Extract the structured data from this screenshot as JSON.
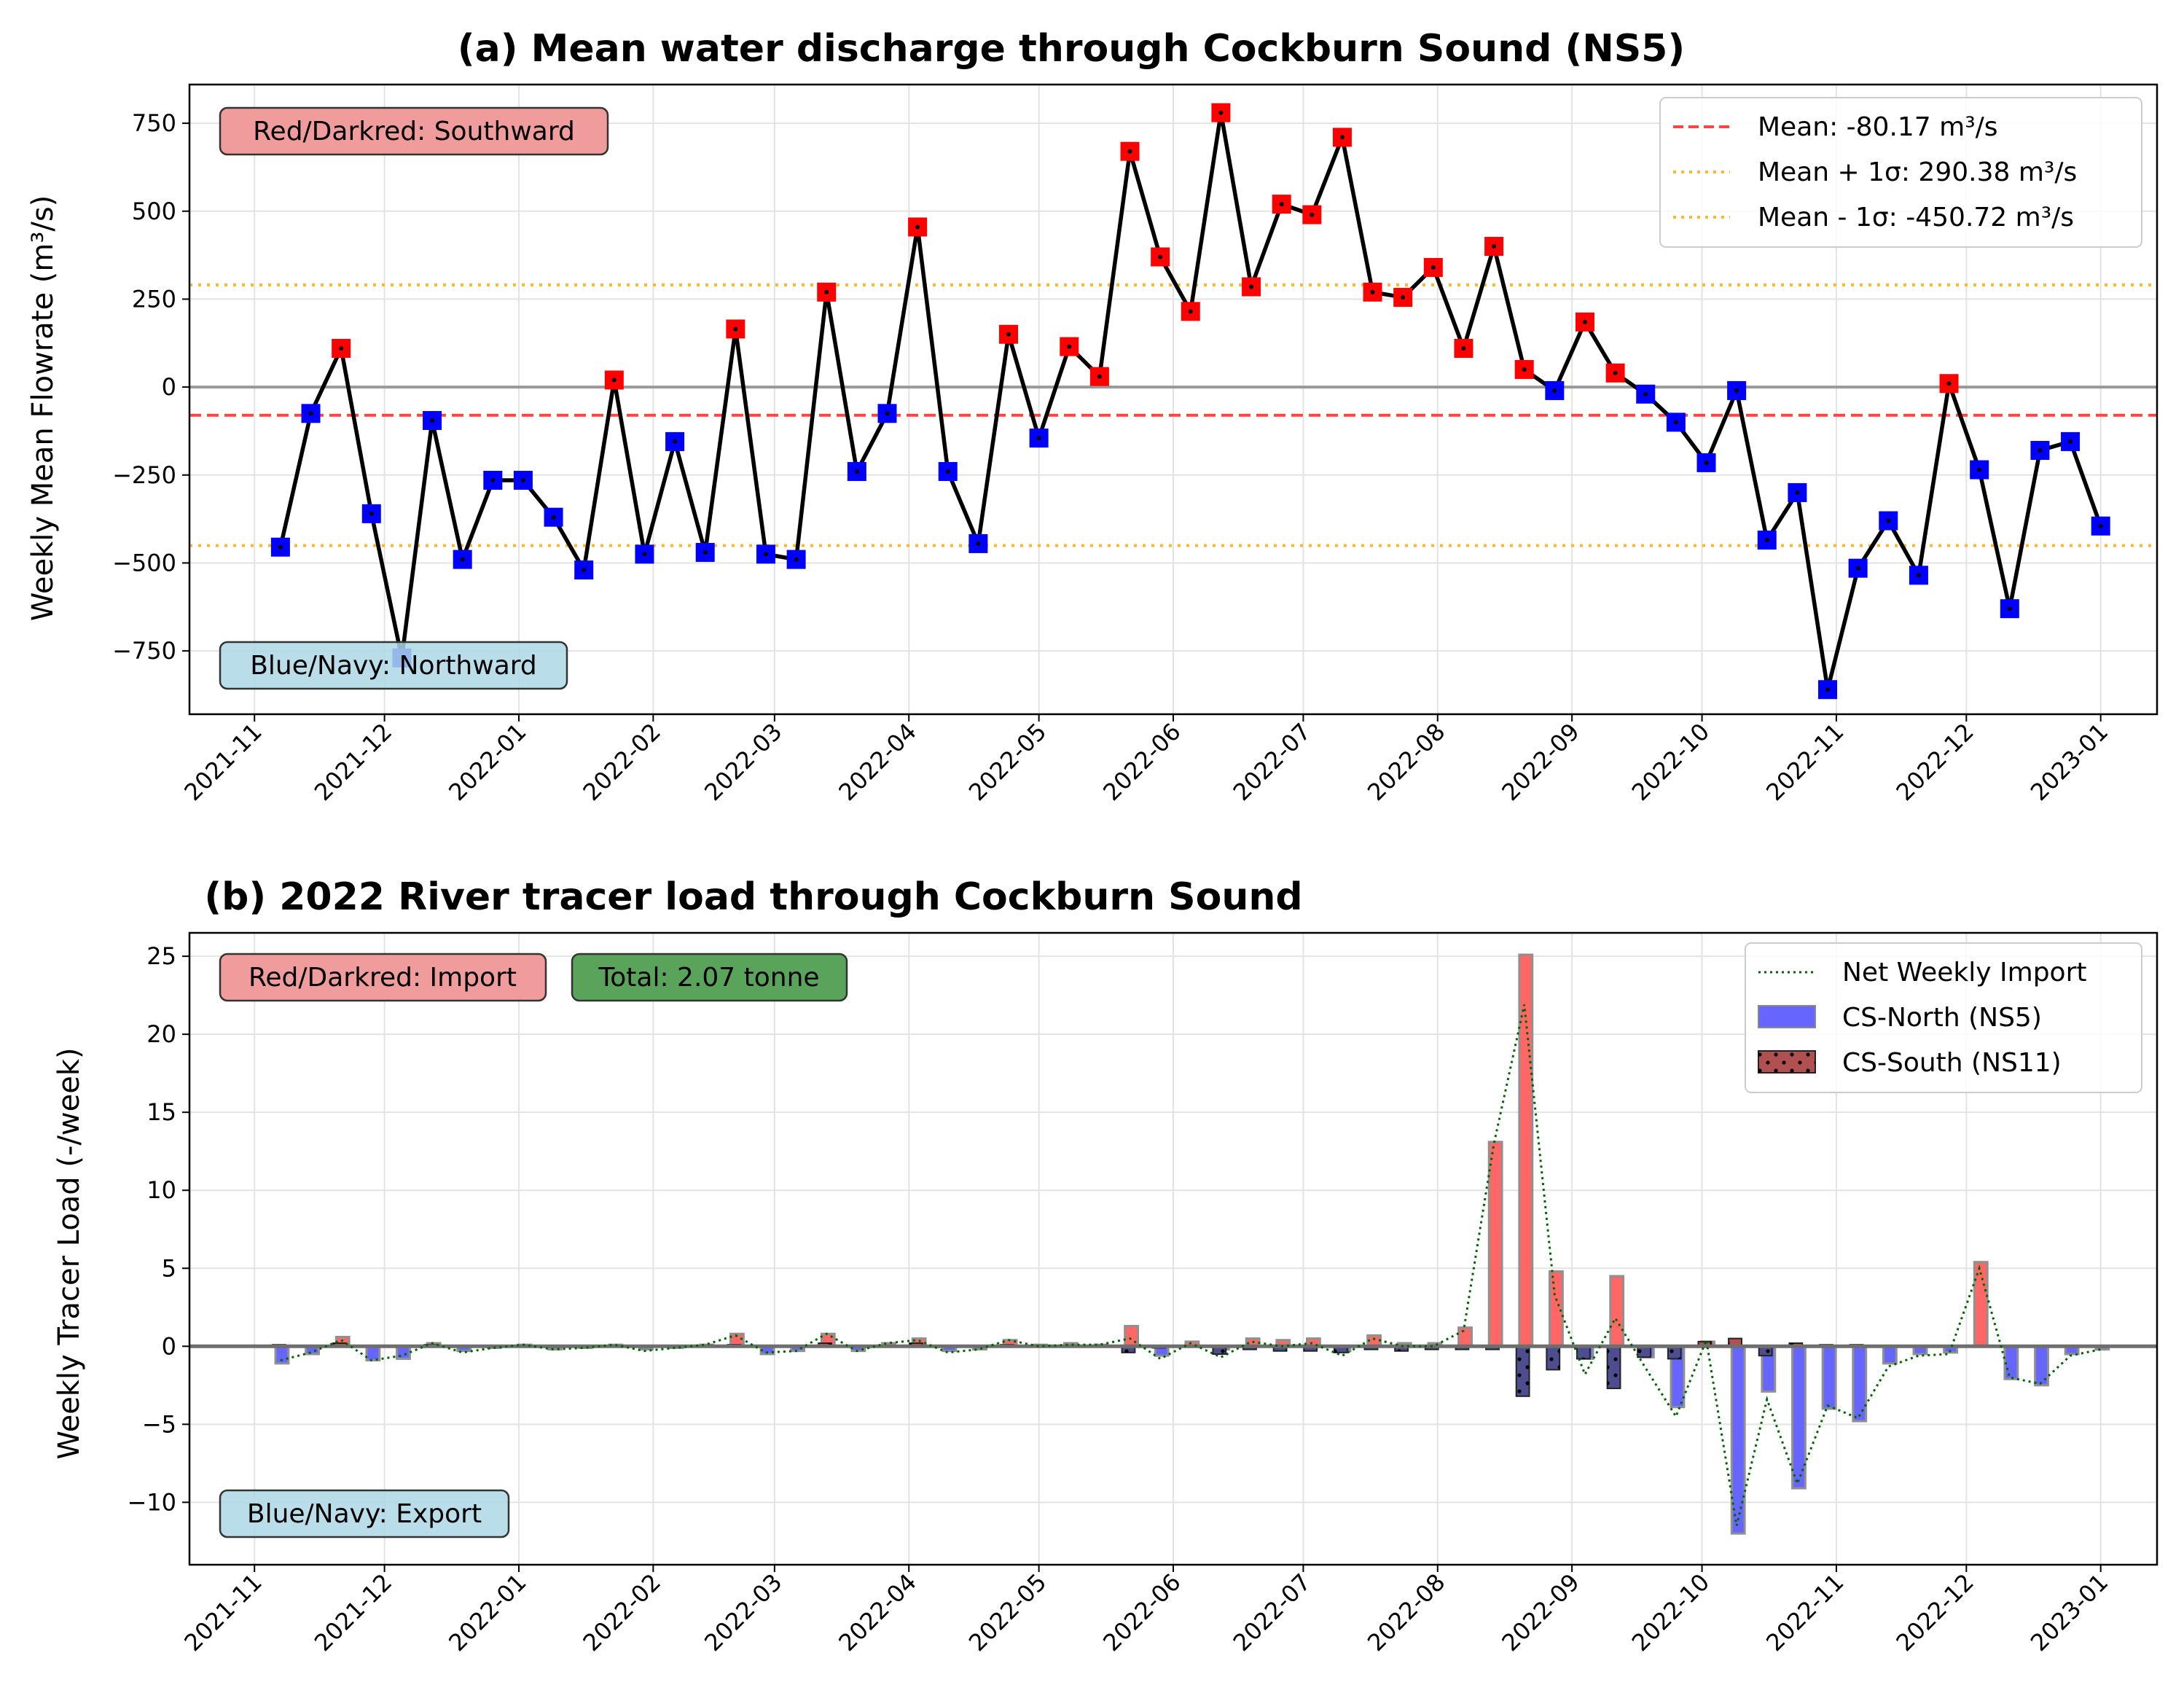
{
  "chart_data": [
    {
      "type": "line",
      "title": "(a) Mean water discharge through Cockburn Sound (NS5)",
      "ylabel": "Weekly Mean Flowrate (m³/s)",
      "xlabel": "",
      "xlim": [
        "2021-10-17",
        "2023-01-14"
      ],
      "ylim": [
        -930,
        860
      ],
      "yticks": [
        750,
        500,
        250,
        0,
        -250,
        -500,
        -750
      ],
      "xticks": [
        "2021-11",
        "2021-12",
        "2022-01",
        "2022-02",
        "2022-03",
        "2022-04",
        "2022-05",
        "2022-06",
        "2022-07",
        "2022-08",
        "2022-09",
        "2022-10",
        "2022-11",
        "2022-12",
        "2023-01"
      ],
      "grid": true,
      "legend_position": "upper right",
      "legend": [
        "Mean: -80.17 m³/s",
        "Mean + 1σ: 290.38 m³/s",
        "Mean - 1σ: -450.72 m³/s"
      ],
      "mean": -80.17,
      "upper": 290.38,
      "lower": -450.72,
      "annotations": [
        "Red/Darkred: Southward",
        "Blue/Navy: Northward"
      ],
      "colors": {
        "positive": "#ff0000",
        "negative": "#0000ff",
        "line": "#000000",
        "mean": "#ff4444",
        "sigma": "#ffb732"
      },
      "series": [
        {
          "x": [
            "2021-11-07",
            "2021-11-14",
            "2021-11-21",
            "2021-11-28",
            "2021-12-05",
            "2021-12-12",
            "2021-12-19",
            "2021-12-26",
            "2022-01-02",
            "2022-01-09",
            "2022-01-16",
            "2022-01-23",
            "2022-01-30",
            "2022-02-06",
            "2022-02-13",
            "2022-02-20",
            "2022-02-27",
            "2022-03-06",
            "2022-03-13",
            "2022-03-20",
            "2022-03-27",
            "2022-04-03",
            "2022-04-10",
            "2022-04-17",
            "2022-04-24",
            "2022-05-01",
            "2022-05-08",
            "2022-05-15",
            "2022-05-22",
            "2022-05-29",
            "2022-06-05",
            "2022-06-12",
            "2022-06-19",
            "2022-06-26",
            "2022-07-03",
            "2022-07-10",
            "2022-07-17",
            "2022-07-24",
            "2022-07-31",
            "2022-08-07",
            "2022-08-14",
            "2022-08-21",
            "2022-08-28",
            "2022-09-04",
            "2022-09-11",
            "2022-09-18",
            "2022-09-25",
            "2022-10-02",
            "2022-10-09",
            "2022-10-16",
            "2022-10-23",
            "2022-10-30",
            "2022-11-06",
            "2022-11-13",
            "2022-11-20",
            "2022-11-27",
            "2022-12-04",
            "2022-12-11",
            "2022-12-18",
            "2022-12-25",
            "2023-01-01"
          ],
          "y": [
            -455,
            -75,
            110,
            -360,
            -770,
            -95,
            -490,
            -265,
            -265,
            -370,
            -520,
            20,
            -475,
            -155,
            -470,
            165,
            -475,
            -490,
            270,
            -240,
            -75,
            455,
            -240,
            -445,
            150,
            -145,
            115,
            30,
            670,
            370,
            215,
            780,
            285,
            520,
            490,
            710,
            270,
            255,
            340,
            110,
            400,
            50,
            -10,
            185,
            40,
            -20,
            -100,
            -215,
            -10,
            -435,
            -300,
            -860,
            -515,
            -380,
            -535,
            10,
            -235,
            -630,
            -180,
            -155,
            -395
          ]
        }
      ]
    },
    {
      "type": "bar",
      "title": "(b) 2022 River tracer load through Cockburn Sound",
      "ylabel": "Weekly Tracer Load (-/week)",
      "xlabel": "",
      "xlim": [
        "2021-10-17",
        "2023-01-14"
      ],
      "ylim": [
        -14,
        26.5
      ],
      "yticks": [
        25,
        20,
        15,
        10,
        5,
        0,
        -5,
        -10
      ],
      "xticks": [
        "2021-11",
        "2021-12",
        "2022-01",
        "2022-02",
        "2022-03",
        "2022-04",
        "2022-05",
        "2022-06",
        "2022-07",
        "2022-08",
        "2022-09",
        "2022-10",
        "2022-11",
        "2022-12",
        "2023-01"
      ],
      "grid": true,
      "legend_position": "upper right",
      "legend": [
        "Net Weekly Import",
        "CS-North (NS5)",
        "CS-South (NS11)"
      ],
      "annotations": [
        "Red/Darkred: Import",
        "Total: 2.07 tonne",
        "Blue/Navy: Export"
      ],
      "colors": {
        "north_pos": "#ff6666",
        "north_neg": "#6666ff",
        "south_pos": "#b05050",
        "south_neg": "#4d4d8f",
        "net": "#006400"
      },
      "series": [
        {
          "name": "CS-North (NS5)",
          "x": [
            "2021-11-07",
            "2021-11-14",
            "2021-11-21",
            "2021-11-28",
            "2021-12-05",
            "2021-12-12",
            "2021-12-19",
            "2021-12-26",
            "2022-01-02",
            "2022-01-09",
            "2022-01-16",
            "2022-01-23",
            "2022-01-30",
            "2022-02-06",
            "2022-02-13",
            "2022-02-20",
            "2022-02-27",
            "2022-03-06",
            "2022-03-13",
            "2022-03-20",
            "2022-03-27",
            "2022-04-03",
            "2022-04-10",
            "2022-04-17",
            "2022-04-24",
            "2022-05-01",
            "2022-05-08",
            "2022-05-15",
            "2022-05-22",
            "2022-05-29",
            "2022-06-05",
            "2022-06-12",
            "2022-06-19",
            "2022-06-26",
            "2022-07-03",
            "2022-07-10",
            "2022-07-17",
            "2022-07-24",
            "2022-07-31",
            "2022-08-07",
            "2022-08-14",
            "2022-08-21",
            "2022-08-28",
            "2022-09-04",
            "2022-09-11",
            "2022-09-18",
            "2022-09-25",
            "2022-10-02",
            "2022-10-09",
            "2022-10-16",
            "2022-10-23",
            "2022-10-30",
            "2022-11-06",
            "2022-11-13",
            "2022-11-20",
            "2022-11-27",
            "2022-12-04",
            "2022-12-11",
            "2022-12-18",
            "2022-12-25",
            "2023-01-01"
          ],
          "values": [
            -1.1,
            -0.5,
            0.6,
            -0.9,
            -0.8,
            0.2,
            -0.3,
            -0.1,
            0.1,
            -0.2,
            -0.1,
            0.1,
            -0.2,
            -0.1,
            0.1,
            0.8,
            -0.5,
            -0.3,
            0.8,
            -0.3,
            0.2,
            0.5,
            -0.3,
            -0.2,
            0.4,
            0.1,
            0.2,
            0.1,
            1.3,
            -0.6,
            0.3,
            -0.2,
            0.5,
            0.4,
            0.5,
            -0.3,
            0.7,
            0.2,
            0.2,
            1.2,
            13.1,
            25.1,
            4.8,
            -0.8,
            4.5,
            -0.7,
            -3.9,
            0.3,
            -12.0,
            -2.9,
            -9.1,
            -4.0,
            -4.8,
            -1.1,
            -0.5,
            -0.4,
            5.4,
            -2.1,
            -2.5,
            -0.5,
            -0.2
          ]
        },
        {
          "name": "CS-South (NS11)",
          "x": [
            "2021-11-07",
            "2021-11-14",
            "2021-11-21",
            "2021-11-28",
            "2021-12-05",
            "2021-12-12",
            "2021-12-19",
            "2021-12-26",
            "2022-01-02",
            "2022-01-09",
            "2022-01-16",
            "2022-01-23",
            "2022-01-30",
            "2022-02-06",
            "2022-02-13",
            "2022-02-20",
            "2022-02-27",
            "2022-03-06",
            "2022-03-13",
            "2022-03-20",
            "2022-03-27",
            "2022-04-03",
            "2022-04-10",
            "2022-04-17",
            "2022-04-24",
            "2022-05-01",
            "2022-05-08",
            "2022-05-15",
            "2022-05-22",
            "2022-05-29",
            "2022-06-05",
            "2022-06-12",
            "2022-06-19",
            "2022-06-26",
            "2022-07-03",
            "2022-07-10",
            "2022-07-17",
            "2022-07-24",
            "2022-07-31",
            "2022-08-07",
            "2022-08-14",
            "2022-08-21",
            "2022-08-28",
            "2022-09-04",
            "2022-09-11",
            "2022-09-18",
            "2022-09-25",
            "2022-10-02",
            "2022-10-09",
            "2022-10-16",
            "2022-10-23",
            "2022-10-30",
            "2022-11-06",
            "2022-11-13",
            "2022-11-20",
            "2022-11-27",
            "2022-12-04",
            "2022-12-11",
            "2022-12-18",
            "2022-12-25",
            "2023-01-01"
          ],
          "values": [
            0.1,
            0.0,
            0.2,
            0.0,
            0.0,
            0.1,
            0.0,
            0.0,
            0.0,
            0.0,
            0.0,
            0.0,
            0.0,
            0.0,
            0.0,
            0.1,
            0.0,
            0.0,
            0.2,
            0.0,
            0.0,
            0.2,
            0.0,
            0.0,
            0.1,
            0.0,
            0.0,
            0.0,
            -0.4,
            -0.1,
            0.0,
            -0.5,
            -0.2,
            -0.3,
            -0.3,
            -0.4,
            -0.2,
            -0.3,
            -0.2,
            -0.2,
            -0.2,
            -3.2,
            -1.5,
            -0.8,
            -2.7,
            -0.7,
            -0.8,
            0.3,
            0.5,
            -0.6,
            0.2,
            0.1,
            0.1,
            0.0,
            0.0,
            0.0,
            0.0,
            0.0,
            0.0,
            0.0,
            0.0
          ]
        },
        {
          "name": "Net Weekly Import",
          "x": [
            "2021-11-07",
            "2021-11-14",
            "2021-11-21",
            "2021-11-28",
            "2021-12-05",
            "2021-12-12",
            "2021-12-19",
            "2021-12-26",
            "2022-01-02",
            "2022-01-09",
            "2022-01-16",
            "2022-01-23",
            "2022-01-30",
            "2022-02-06",
            "2022-02-13",
            "2022-02-20",
            "2022-02-27",
            "2022-03-06",
            "2022-03-13",
            "2022-03-20",
            "2022-03-27",
            "2022-04-03",
            "2022-04-10",
            "2022-04-17",
            "2022-04-24",
            "2022-05-01",
            "2022-05-08",
            "2022-05-15",
            "2022-05-22",
            "2022-05-29",
            "2022-06-05",
            "2022-06-12",
            "2022-06-19",
            "2022-06-26",
            "2022-07-03",
            "2022-07-10",
            "2022-07-17",
            "2022-07-24",
            "2022-07-31",
            "2022-08-07",
            "2022-08-14",
            "2022-08-21",
            "2022-08-28",
            "2022-09-04",
            "2022-09-11",
            "2022-09-18",
            "2022-09-25",
            "2022-10-02",
            "2022-10-09",
            "2022-10-16",
            "2022-10-23",
            "2022-10-30",
            "2022-11-06",
            "2022-11-13",
            "2022-11-20",
            "2022-11-27",
            "2022-12-04",
            "2022-12-11",
            "2022-12-18",
            "2022-12-25",
            "2023-01-01"
          ],
          "values": [
            -0.9,
            -0.4,
            0.4,
            -0.9,
            -0.6,
            0.2,
            -0.4,
            -0.1,
            0.1,
            -0.2,
            -0.1,
            0.1,
            -0.3,
            -0.1,
            0.1,
            0.7,
            -0.4,
            -0.3,
            0.8,
            -0.3,
            0.2,
            0.4,
            -0.4,
            -0.2,
            0.4,
            0.0,
            0.1,
            0.1,
            0.5,
            -0.8,
            0.2,
            -0.7,
            0.3,
            0.0,
            0.2,
            -0.6,
            0.5,
            0.0,
            0.0,
            1.0,
            13.0,
            21.9,
            3.3,
            -1.8,
            1.8,
            -1.4,
            -4.5,
            0.4,
            -11.5,
            -3.4,
            -8.8,
            -3.8,
            -4.6,
            -1.3,
            -0.6,
            -0.5,
            5.0,
            -2.0,
            -2.4,
            -0.6,
            -0.2
          ]
        }
      ]
    }
  ]
}
